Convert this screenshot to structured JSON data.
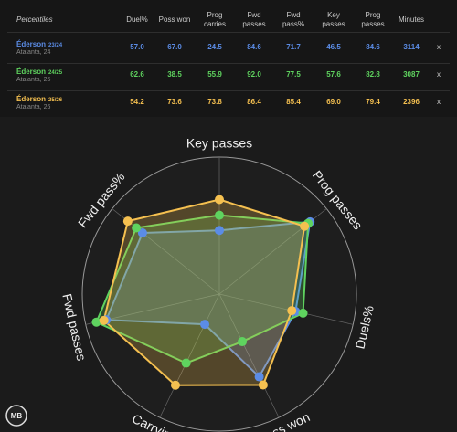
{
  "table": {
    "header": [
      "Percentiles",
      "Duel%",
      "Poss won",
      "Prog carries",
      "Fwd passes",
      "Fwd pass%",
      "Key passes",
      "Prog passes",
      "Minutes"
    ],
    "rows": [
      {
        "name": "Éderson",
        "season": "23/24",
        "club": "Atalanta, 24",
        "color": "#5b8ce6",
        "values": [
          57.0,
          67.0,
          24.5,
          84.6,
          71.7,
          46.5,
          84.6
        ],
        "value_labels": [
          "57.0",
          "67.0",
          "24.5",
          "84.6",
          "71.7",
          "46.5",
          "84.6"
        ],
        "minutes": 3114,
        "remove": "x"
      },
      {
        "name": "Éderson",
        "season": "24/25",
        "club": "Atalanta, 25",
        "color": "#5fd35f",
        "values": [
          62.6,
          38.5,
          55.9,
          92.0,
          77.5,
          57.6,
          82.8
        ],
        "value_labels": [
          "62.6",
          "38.5",
          "55.9",
          "92.0",
          "77.5",
          "57.6",
          "82.8"
        ],
        "minutes": 3087,
        "remove": "x"
      },
      {
        "name": "Éderson",
        "season": "25/26",
        "club": "Atalanta, 26",
        "color": "#f5c050",
        "values": [
          54.2,
          73.6,
          73.8,
          86.4,
          85.4,
          69.0,
          79.4
        ],
        "value_labels": [
          "54.2",
          "73.6",
          "73.8",
          "86.4",
          "85.4",
          "69.0",
          "79.4"
        ],
        "minutes": 2396,
        "remove": "x"
      }
    ]
  },
  "radar": {
    "type": "radar",
    "axes": [
      "Key passes",
      "Prog passes",
      "Duels%",
      "Poss won",
      "Carrying",
      "Fwd passes",
      "Fwd pass%"
    ],
    "rlim": [
      0,
      100
    ]
  },
  "logo": "MB"
}
